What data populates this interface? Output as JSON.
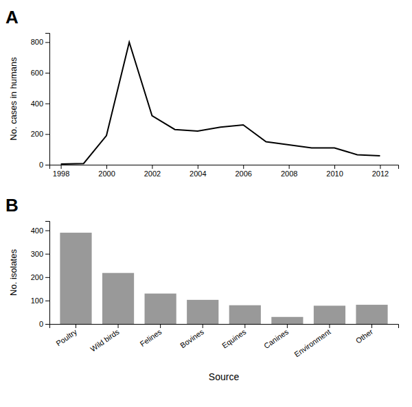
{
  "chart_data": [
    {
      "type": "line",
      "title": "A",
      "x": [
        1998,
        1999,
        2000,
        2001,
        2002,
        2003,
        2004,
        2005,
        2006,
        2007,
        2008,
        2009,
        2010,
        2011,
        2012
      ],
      "values": [
        5,
        8,
        190,
        800,
        320,
        230,
        220,
        245,
        260,
        150,
        130,
        110,
        110,
        65,
        58
      ],
      "color": "#000000",
      "ylabel": "No. cases in humans",
      "xlim": [
        1997.5,
        2012.8
      ],
      "xticks": [
        1998,
        2000,
        2002,
        2004,
        2006,
        2008,
        2010,
        2012
      ],
      "ylim": [
        0,
        860
      ],
      "yticks": [
        0,
        200,
        400,
        600,
        800
      ]
    },
    {
      "type": "bar",
      "title": "B",
      "categories": [
        "Poultry",
        "Wild birds",
        "Felines",
        "Bovines",
        "Equines",
        "Canines",
        "Environment",
        "Other"
      ],
      "values": [
        390,
        218,
        130,
        103,
        80,
        30,
        78,
        82
      ],
      "color": "#999999",
      "ylabel": "No. isolates",
      "xlabel": "Source",
      "ylim": [
        0,
        440
      ],
      "yticks": [
        0,
        100,
        200,
        300,
        400
      ]
    }
  ]
}
